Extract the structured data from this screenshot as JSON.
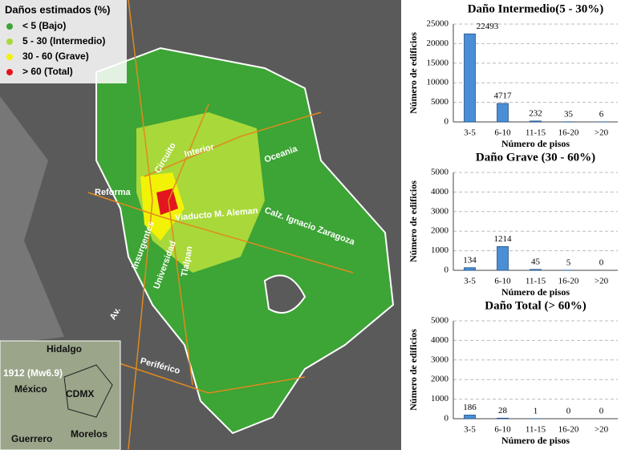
{
  "chart_data": [
    {
      "type": "bar",
      "title": "Daño Intermedio(5 - 30%)",
      "x_label": "Número de pisos",
      "y_label": "Número de edificios",
      "categories": [
        "3-5",
        "6-10",
        "11-15",
        "16-20",
        ">20"
      ],
      "values": [
        22493,
        4717,
        232,
        35,
        6
      ],
      "color": "#4a8fd6",
      "ylim": [
        0,
        25000
      ],
      "yticks": [
        0,
        5000,
        10000,
        15000,
        20000,
        25000
      ],
      "grid": true
    },
    {
      "type": "bar",
      "title": "Daño Grave (30 - 60%)",
      "x_label": "Número de pisos",
      "y_label": "Número de edificios",
      "categories": [
        "3-5",
        "6-10",
        "11-15",
        "16-20",
        ">20"
      ],
      "values": [
        134,
        1214,
        45,
        5,
        0
      ],
      "color": "#4a8fd6",
      "ylim": [
        0,
        5000
      ],
      "yticks": [
        0,
        1000,
        2000,
        3000,
        4000,
        5000
      ],
      "grid": true
    },
    {
      "type": "bar",
      "title": "Daño Total (> 60%)",
      "x_label": "Número de pisos",
      "y_label": "Número de edificios",
      "categories": [
        "3-5",
        "6-10",
        "11-15",
        "16-20",
        ">20"
      ],
      "values": [
        186,
        28,
        1,
        0,
        0
      ],
      "color": "#4a8fd6",
      "ylim": [
        0,
        5000
      ],
      "yticks": [
        0,
        1000,
        2000,
        3000,
        4000,
        5000
      ],
      "grid": true
    }
  ],
  "map": {
    "legend": {
      "title": "Daños estimados (%)",
      "items": [
        {
          "label": "< 5 (Bajo)",
          "color": "#3da436"
        },
        {
          "label": "5 - 30 (Intermedio)",
          "color": "#a9d83a"
        },
        {
          "label": "30 - 60 (Grave)",
          "color": "#f2f207"
        },
        {
          "label": "> 60 (Total)",
          "color": "#e3151e"
        }
      ]
    },
    "roads": [
      "Circuito",
      "Interior",
      "Oceania",
      "Reforma",
      "Viaducto M. Aleman",
      "Calz. Ignacio Zaragoza",
      "Insurgentes",
      "Universidad",
      "Tlalpan",
      "Av.",
      "Periférico"
    ],
    "inset": [
      "Hidalgo",
      "1912 (Mw6.9)",
      "México",
      "CDMX",
      "Guerrero",
      "Morelos"
    ]
  }
}
